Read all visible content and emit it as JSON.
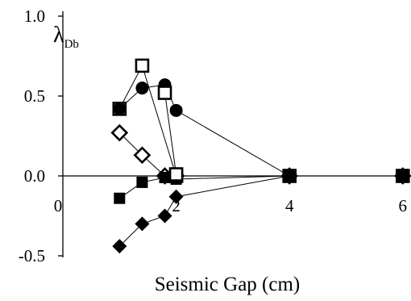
{
  "chart_data": {
    "type": "scatter",
    "title": "",
    "xlabel": "Seismic Gap (cm)",
    "ylabel": "λ",
    "ylabel_subscript": "Db",
    "xlim": [
      0,
      6
    ],
    "ylim": [
      -0.5,
      1.0
    ],
    "x_ticks": [
      0,
      2,
      4,
      6
    ],
    "y_ticks": [
      1.0,
      0.5,
      0.0,
      -0.5
    ],
    "x_tick_labels": [
      "0",
      "2",
      "4",
      "6"
    ],
    "y_tick_labels": [
      "1.0",
      "0.5",
      "0.0",
      "-0.5"
    ],
    "grid": false,
    "legend": "none",
    "series": [
      {
        "marker": "open-square",
        "x": [
          1.0,
          1.4,
          2.0,
          4.0,
          6.0
        ],
        "y": [
          0.42,
          0.69,
          0.0,
          0.0,
          0.0
        ]
      },
      {
        "marker": "filled-circle",
        "x": [
          1.0,
          1.4,
          1.8,
          2.0,
          4.0,
          6.0
        ],
        "y": [
          0.42,
          0.55,
          0.57,
          0.41,
          0.0,
          0.0
        ]
      },
      {
        "marker": "open-diamond",
        "x": [
          1.0,
          1.4,
          1.8,
          2.0,
          4.0,
          6.0
        ],
        "y": [
          0.27,
          0.13,
          0.0,
          0.0,
          0.0,
          0.0
        ]
      },
      {
        "marker": "filled-square",
        "x": [
          1.0,
          1.4,
          1.8,
          2.0,
          4.0,
          6.0
        ],
        "y": [
          -0.14,
          -0.04,
          -0.01,
          -0.02,
          0.0,
          0.0
        ]
      },
      {
        "marker": "filled-diamond",
        "x": [
          1.0,
          1.4,
          1.8,
          2.0,
          4.0,
          6.0
        ],
        "y": [
          -0.44,
          -0.3,
          -0.25,
          -0.13,
          0.0,
          0.0
        ]
      },
      {
        "marker": "open-square",
        "x": [
          1.8,
          2.0
        ],
        "y": [
          0.52,
          0.01
        ]
      }
    ]
  }
}
